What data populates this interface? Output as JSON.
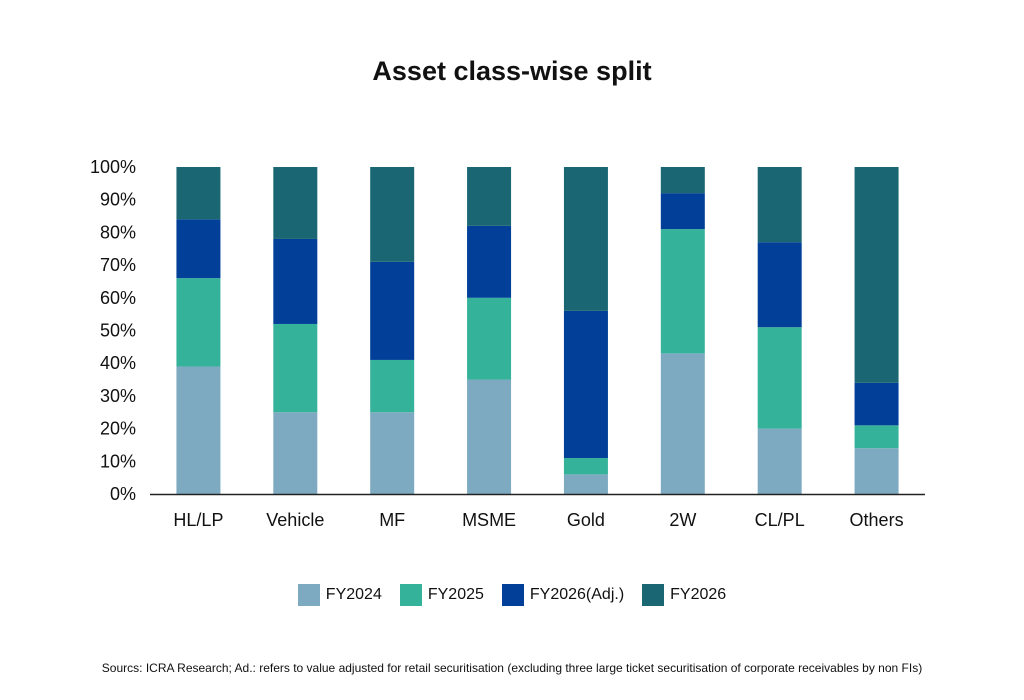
{
  "title": "Asset class-wise split",
  "chart_data": {
    "type": "bar",
    "stacked": true,
    "categories": [
      "HL/LP",
      "Vehicle",
      "MF",
      "MSME",
      "Gold",
      "2W",
      "CL/PL",
      "Others"
    ],
    "series": [
      {
        "name": "FY2024",
        "color": "#7eaac1",
        "values": [
          39,
          25,
          25,
          35,
          6,
          43,
          20,
          14
        ]
      },
      {
        "name": "FY2025",
        "color": "#35b39a",
        "values": [
          27,
          27,
          16,
          25,
          5,
          38,
          31,
          7
        ]
      },
      {
        "name": "FY2026(Adj.)",
        "color": "#013f98",
        "values": [
          18,
          26,
          30,
          22,
          45,
          11,
          26,
          13
        ]
      },
      {
        "name": "FY2026",
        "color": "#1a6773",
        "values": [
          16,
          22,
          29,
          18,
          44,
          8,
          23,
          66
        ]
      }
    ],
    "ylim": [
      0,
      100
    ],
    "yticks": [
      "0%",
      "10%",
      "20%",
      "30%",
      "40%",
      "50%",
      "60%",
      "70%",
      "80%",
      "90%",
      "100%"
    ],
    "legend_position": "bottom",
    "grid": false
  },
  "source_note": "Sourcs: ICRA Research; Ad.: refers to value adjusted for retail securitisation (excluding three large ticket securitisation of corporate receivables by non FIs)"
}
